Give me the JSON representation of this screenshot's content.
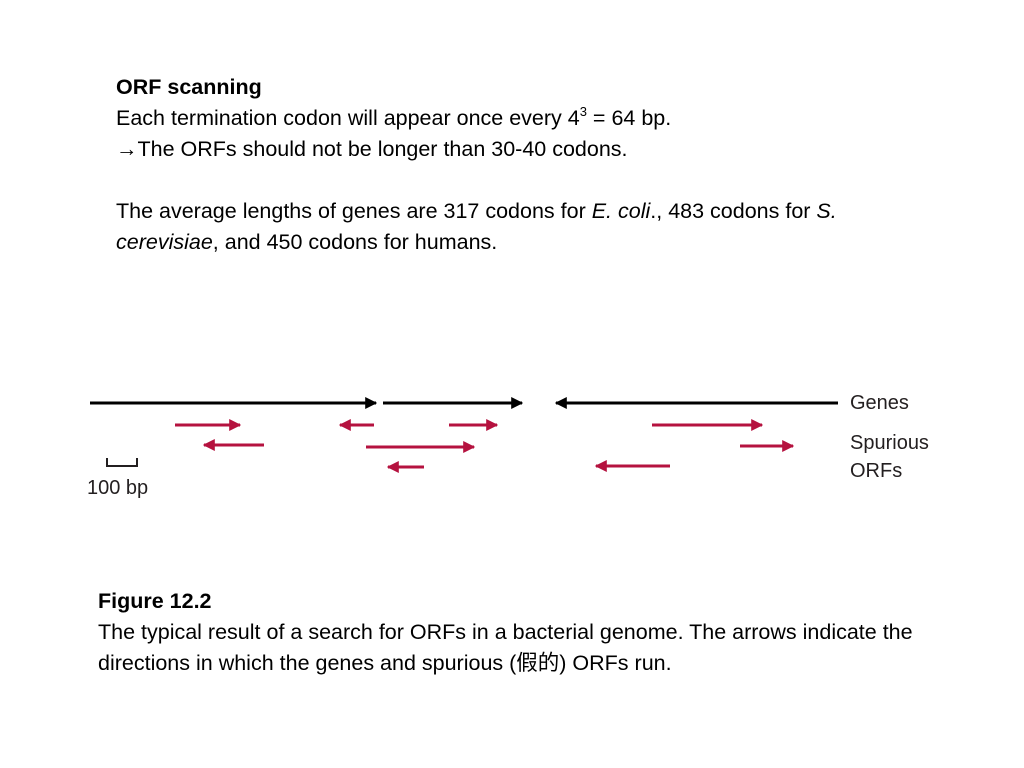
{
  "slide": {
    "title": "ORF scanning",
    "line1_before": "Each termination codon will appear once every 4",
    "line1_sup": "3",
    "line1_after": " = 64 bp.",
    "arrow_glyph": "→",
    "line2": "The ORFs should not be longer than 30-40 codons.",
    "para_part1": "The average lengths of genes are 317 codons for ",
    "para_ecoli": "E. coli",
    "para_part2": "., 483 codons for ",
    "para_scer": "S. cerevisiae",
    "para_part3": ", and 450 codons for humans."
  },
  "figure": {
    "label_genes": "Genes",
    "label_spurious_line1": "Spurious",
    "label_spurious_line2": "ORFs",
    "scale_label": "100 bp",
    "colors": {
      "genes": "#000000",
      "spurious": "#b5123f"
    }
  },
  "caption": {
    "title": "Figure 12.2",
    "text": "The typical result of a search for ORFs in a bacterial genome. The arrows indicate the directions in which the genes and spurious (假的) ORFs run."
  }
}
